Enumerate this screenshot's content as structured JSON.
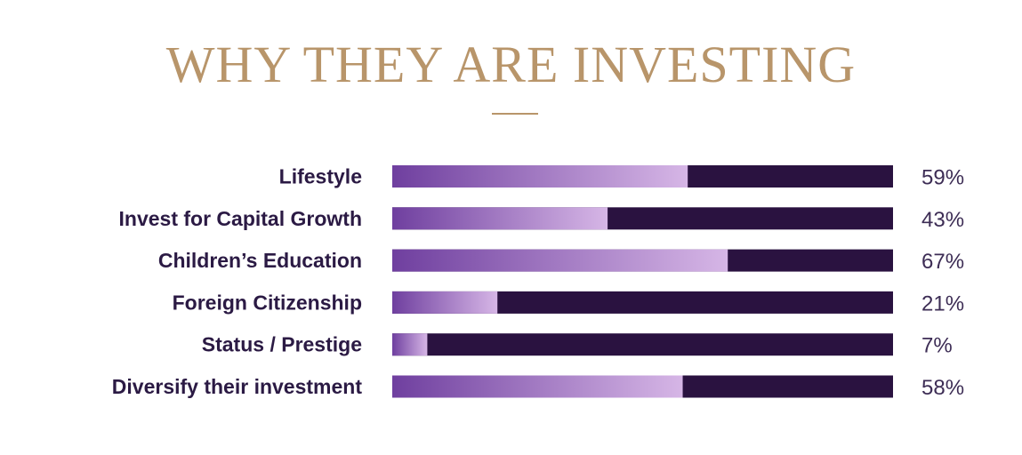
{
  "colors": {
    "title": "#b8956a",
    "label": "#2b1a44",
    "bar_background": "#2a1240",
    "bar_fill_start": "#6f3f9f",
    "bar_fill_end": "#d6b6e6",
    "value_text": "#3d2d55"
  },
  "chart_data": {
    "type": "bar",
    "orientation": "horizontal",
    "stacked_to_100": true,
    "title": "WHY THEY ARE INVESTING",
    "categories": [
      "Lifestyle",
      "Invest for Capital Growth",
      "Children’s Education",
      "Foreign Citizenship",
      "Status / Prestige",
      "Diversify their investment"
    ],
    "values": [
      59,
      43,
      67,
      21,
      7,
      58
    ],
    "value_labels": [
      "59%",
      "43%",
      "67%",
      "21%",
      "7%",
      "58%"
    ],
    "unit": "%",
    "xlim": [
      0,
      100
    ],
    "grid": false,
    "legend": false
  }
}
